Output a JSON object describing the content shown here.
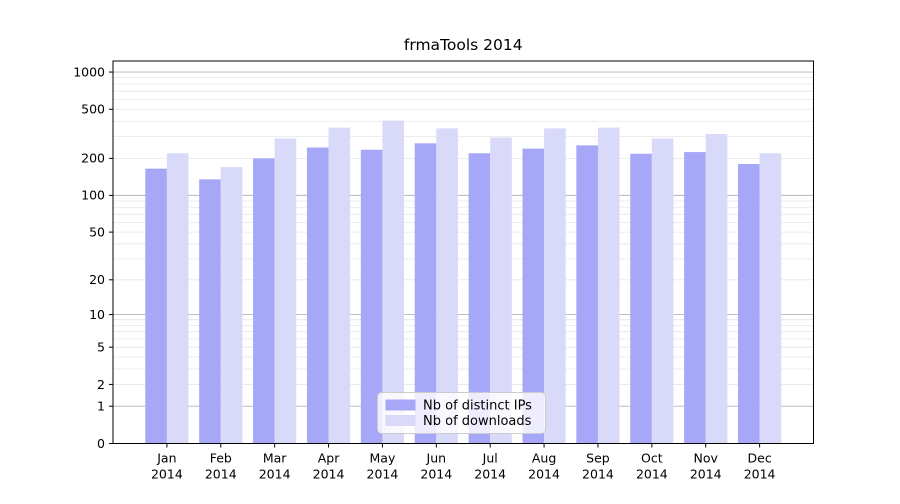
{
  "window": {
    "background": "#ffffff"
  },
  "chart_data": {
    "type": "bar",
    "title": "frmaTools 2014",
    "xlabel": "",
    "ylabel": "",
    "scale": "log1p",
    "ylim": [
      0,
      1250
    ],
    "yticks": [
      0,
      1,
      2,
      5,
      10,
      20,
      50,
      100,
      200,
      500,
      1000
    ],
    "categories": [
      "Jan",
      "Feb",
      "Mar",
      "Apr",
      "May",
      "Jun",
      "Jul",
      "Aug",
      "Sep",
      "Oct",
      "Nov",
      "Dec"
    ],
    "category_year": "2014",
    "series": [
      {
        "name": "Nb of distinct IPs",
        "color": "#a7a7f7",
        "values": [
          165,
          135,
          200,
          245,
          235,
          265,
          220,
          240,
          255,
          218,
          225,
          180
        ]
      },
      {
        "name": "Nb of downloads",
        "color": "#d9d9f9",
        "values": [
          220,
          170,
          290,
          355,
          405,
          350,
          295,
          350,
          355,
          290,
          315,
          220
        ]
      }
    ],
    "grid": {
      "shown": true,
      "major_decades": [
        1,
        10,
        100,
        1000
      ],
      "major_color": "#b4b4b4",
      "minor_color": "#e7e7e7"
    },
    "legend": {
      "position": "bottom-center",
      "border_color": "#cccccc",
      "background": "#ffffff",
      "entries": [
        "Nb of distinct IPs",
        "Nb of downloads"
      ]
    },
    "frame_color": "#000000"
  }
}
